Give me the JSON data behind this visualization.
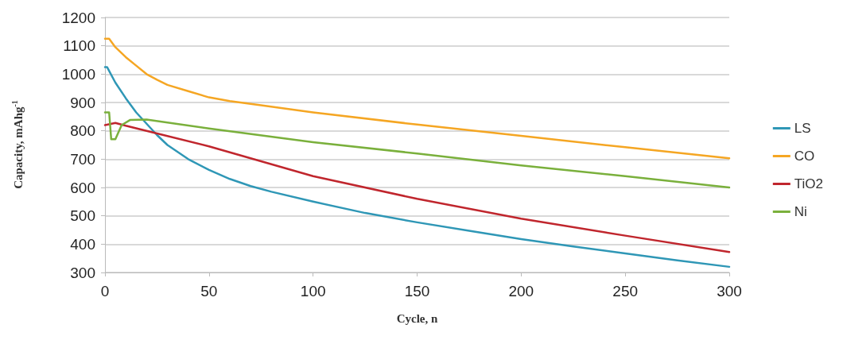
{
  "chart_data": {
    "type": "line",
    "xlabel": "Cycle, n",
    "ylabel": "Capacity, mAhg$^{-1}$",
    "xlim": [
      0,
      300
    ],
    "xticks": [
      0,
      50,
      100,
      150,
      200,
      250,
      300
    ],
    "ylim": [
      300,
      1200
    ],
    "yticks": [
      300,
      400,
      500,
      600,
      700,
      800,
      900,
      1000,
      1100,
      1200
    ],
    "grid": "y",
    "legend": "right",
    "marker": "none",
    "line_style": "solid",
    "series": [
      {
        "name": "LS",
        "color": "#2f97b6",
        "x": [
          0,
          1,
          5,
          10,
          15,
          20,
          25,
          30,
          40,
          50,
          60,
          70,
          80,
          100,
          125,
          150,
          175,
          200,
          225,
          250,
          275,
          300
        ],
        "values": [
          1025,
          1025,
          970,
          915,
          865,
          825,
          785,
          750,
          700,
          662,
          630,
          605,
          585,
          550,
          510,
          477,
          447,
          418,
          392,
          367,
          343,
          320
        ]
      },
      {
        "name": "CO",
        "color": "#f5a623",
        "x": [
          0,
          2,
          5,
          10,
          15,
          20,
          25,
          30,
          40,
          50,
          60,
          75,
          100,
          150,
          200,
          250,
          300
        ],
        "values": [
          1125,
          1125,
          1095,
          1060,
          1030,
          1000,
          980,
          962,
          940,
          918,
          905,
          890,
          865,
          822,
          782,
          742,
          703
        ]
      },
      {
        "name": "TiO2",
        "color": "#c0262d",
        "x": [
          0,
          5,
          10,
          20,
          50,
          100,
          150,
          200,
          250,
          300
        ],
        "values": [
          820,
          828,
          818,
          800,
          745,
          640,
          560,
          490,
          430,
          372
        ]
      },
      {
        "name": "Ni",
        "color": "#7ab03c",
        "x": [
          0,
          2,
          3,
          5,
          8,
          12,
          20,
          50,
          100,
          150,
          200,
          250,
          300
        ],
        "values": [
          865,
          865,
          770,
          770,
          820,
          838,
          840,
          808,
          760,
          720,
          678,
          640,
          600
        ]
      }
    ]
  }
}
